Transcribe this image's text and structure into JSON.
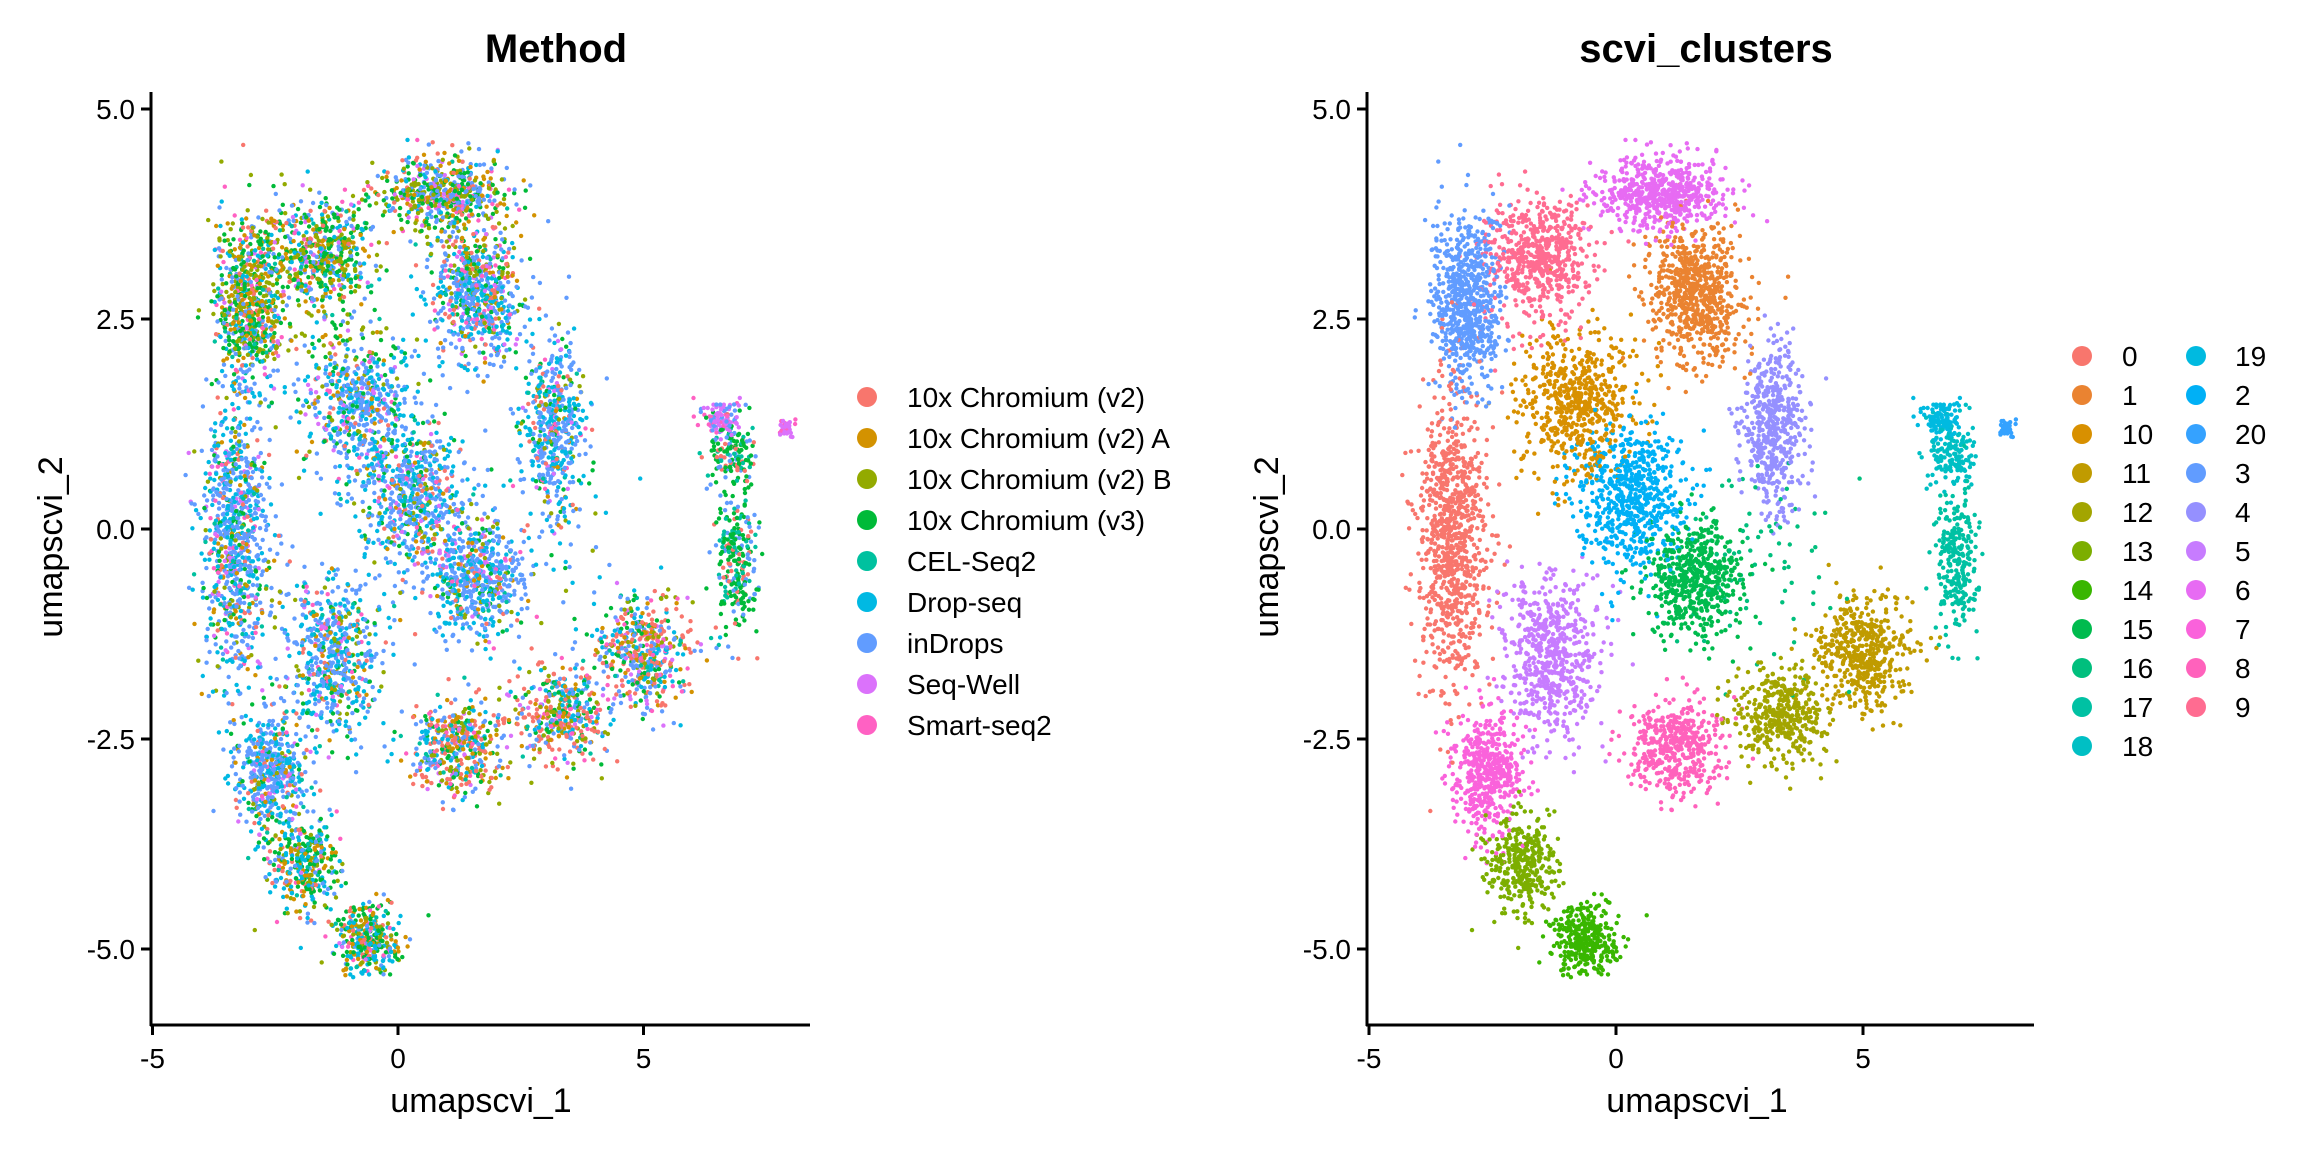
{
  "chart_data": [
    {
      "type": "scatter",
      "title": "Method",
      "xlabel": "umapscvi_1",
      "ylabel": "umapscvi_2",
      "xlim": [
        -5,
        8.4
      ],
      "ylim": [
        -5.9,
        5.2
      ],
      "x_ticks": [
        "-5",
        "0",
        "5"
      ],
      "x_tick_values": [
        -5,
        0,
        5
      ],
      "y_ticks": [
        "5.0",
        "2.5",
        "0.0",
        "-2.5",
        "-5.0"
      ],
      "y_tick_values": [
        5,
        2.5,
        0,
        -2.5,
        -5
      ],
      "grid": false,
      "legend_position": "right",
      "legend": [
        {
          "label": "10x Chromium (v2)",
          "color": "#F8766D"
        },
        {
          "label": "10x Chromium (v2) A",
          "color": "#D39200"
        },
        {
          "label": "10x Chromium (v2) B",
          "color": "#93AA00"
        },
        {
          "label": "10x Chromium (v3)",
          "color": "#00BA38"
        },
        {
          "label": "CEL-Seq2",
          "color": "#00C19F"
        },
        {
          "label": "Drop-seq",
          "color": "#00B9E3"
        },
        {
          "label": "inDrops",
          "color": "#619CFF"
        },
        {
          "label": "Seq-Well",
          "color": "#DB72FB"
        },
        {
          "label": "Smart-seq2",
          "color": "#FF61C3"
        }
      ]
    },
    {
      "type": "scatter",
      "title": "scvi_clusters",
      "xlabel": "umapscvi_1",
      "ylabel": "umapscvi_2",
      "xlim": [
        -5,
        8.4
      ],
      "ylim": [
        -5.9,
        5.2
      ],
      "x_ticks": [
        "-5",
        "0",
        "5"
      ],
      "x_tick_values": [
        -5,
        0,
        5
      ],
      "y_ticks": [
        "5.0",
        "2.5",
        "0.0",
        "-2.5",
        "-5.0"
      ],
      "y_tick_values": [
        5,
        2.5,
        0,
        -2.5,
        -5
      ],
      "grid": false,
      "legend_position": "right",
      "legend": [
        {
          "label": "0",
          "color": "#F8766D"
        },
        {
          "label": "1",
          "color": "#EA8331"
        },
        {
          "label": "10",
          "color": "#D89000"
        },
        {
          "label": "11",
          "color": "#C09B00"
        },
        {
          "label": "12",
          "color": "#A3A500"
        },
        {
          "label": "13",
          "color": "#7CAE00"
        },
        {
          "label": "14",
          "color": "#39B600"
        },
        {
          "label": "15",
          "color": "#00BB4E"
        },
        {
          "label": "16",
          "color": "#00BF7D"
        },
        {
          "label": "17",
          "color": "#00C1A3"
        },
        {
          "label": "18",
          "color": "#00BFC4"
        },
        {
          "label": "19",
          "color": "#00BAE0"
        },
        {
          "label": "2",
          "color": "#00B0F6"
        },
        {
          "label": "20",
          "color": "#35A2FF"
        },
        {
          "label": "3",
          "color": "#619CFF"
        },
        {
          "label": "4",
          "color": "#9590FF"
        },
        {
          "label": "5",
          "color": "#C77CFF"
        },
        {
          "label": "6",
          "color": "#E76BF3"
        },
        {
          "label": "7",
          "color": "#FA62DB"
        },
        {
          "label": "8",
          "color": "#FF62BC"
        },
        {
          "label": "9",
          "color": "#FF6C91"
        }
      ],
      "clusters": [
        {
          "id": "0",
          "center": [
            -3.3,
            -0.1
          ],
          "spread": [
            0.55,
            1.5
          ],
          "n": 900
        },
        {
          "id": "1",
          "center": [
            1.6,
            2.8
          ],
          "spread": [
            0.8,
            0.7
          ],
          "n": 700
        },
        {
          "id": "10",
          "center": [
            -0.8,
            1.5
          ],
          "spread": [
            1.0,
            0.7
          ],
          "n": 600
        },
        {
          "id": "11",
          "center": [
            5.0,
            -1.5
          ],
          "spread": [
            0.8,
            0.55
          ],
          "n": 500
        },
        {
          "id": "12",
          "center": [
            3.3,
            -2.2
          ],
          "spread": [
            0.8,
            0.45
          ],
          "n": 400
        },
        {
          "id": "13",
          "center": [
            -1.9,
            -4.0
          ],
          "spread": [
            0.55,
            0.5
          ],
          "n": 350
        },
        {
          "id": "14",
          "center": [
            -0.6,
            -4.9
          ],
          "spread": [
            0.6,
            0.35
          ],
          "n": 350
        },
        {
          "id": "15",
          "center": [
            1.6,
            -0.6
          ],
          "spread": [
            0.8,
            0.55
          ],
          "n": 550
        },
        {
          "id": "16",
          "center": [
            3.0,
            -0.3
          ],
          "spread": [
            1.5,
            1.0
          ],
          "n": 80
        },
        {
          "id": "17",
          "center": [
            6.9,
            -0.4
          ],
          "spread": [
            0.35,
            0.7
          ],
          "n": 250
        },
        {
          "id": "18",
          "center": [
            6.8,
            0.9
          ],
          "spread": [
            0.35,
            0.35
          ],
          "n": 150
        },
        {
          "id": "19",
          "center": [
            6.6,
            1.3
          ],
          "spread": [
            0.3,
            0.2
          ],
          "n": 120
        },
        {
          "id": "2",
          "center": [
            0.3,
            0.4
          ],
          "spread": [
            0.9,
            0.7
          ],
          "n": 650
        },
        {
          "id": "20",
          "center": [
            7.9,
            1.2
          ],
          "spread": [
            0.15,
            0.1
          ],
          "n": 40
        },
        {
          "id": "3",
          "center": [
            -3.0,
            2.7
          ],
          "spread": [
            0.6,
            0.9
          ],
          "n": 700
        },
        {
          "id": "4",
          "center": [
            3.2,
            1.2
          ],
          "spread": [
            0.5,
            0.8
          ],
          "n": 500
        },
        {
          "id": "5",
          "center": [
            -1.3,
            -1.5
          ],
          "spread": [
            0.8,
            0.8
          ],
          "n": 600
        },
        {
          "id": "6",
          "center": [
            0.9,
            4.0
          ],
          "spread": [
            1.1,
            0.35
          ],
          "n": 600
        },
        {
          "id": "7",
          "center": [
            -2.6,
            -2.9
          ],
          "spread": [
            0.6,
            0.6
          ],
          "n": 500
        },
        {
          "id": "8",
          "center": [
            1.2,
            -2.6
          ],
          "spread": [
            0.8,
            0.5
          ],
          "n": 450
        },
        {
          "id": "9",
          "center": [
            -1.6,
            3.2
          ],
          "spread": [
            0.9,
            0.6
          ],
          "n": 600
        }
      ]
    }
  ]
}
